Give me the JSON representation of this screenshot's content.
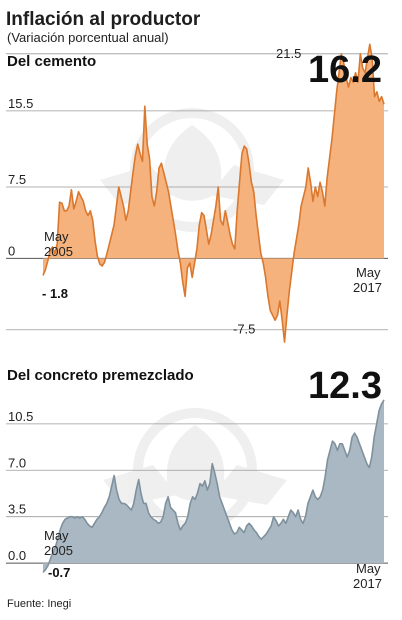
{
  "title": "Inflación al productor",
  "subtitle": "(Variación porcentual anual)",
  "source": "Fuente: Inegi",
  "colors": {
    "cement_fill": "#f5b27c",
    "cement_line": "#d9782e",
    "concrete_fill": "#a9b8c2",
    "concrete_line": "#7f919d"
  },
  "chart_data": [
    {
      "type": "area",
      "title": "Del cemento",
      "start_label": "May 2005",
      "end_label": "May 2017",
      "start_value": "- 1.8",
      "last_value": "16.2",
      "yticks": [
        21.5,
        15.5,
        7.5,
        0,
        -7.5
      ],
      "ylim": [
        -9,
        24
      ],
      "values": [
        -1.8,
        -1.2,
        -0.3,
        0.8,
        1.2,
        0.5,
        1.5,
        5.9,
        5.8,
        5.0,
        5.0,
        5.5,
        7.2,
        5.2,
        6.0,
        7.0,
        6.5,
        6.0,
        5.0,
        4.5,
        5.0,
        4.0,
        1.8,
        0.2,
        -0.6,
        -0.8,
        -0.4,
        0.5,
        1.5,
        2.5,
        3.5,
        5.5,
        7.5,
        6.5,
        5.5,
        4.0,
        5.0,
        7.0,
        9.0,
        10.8,
        12.0,
        11.0,
        10.2,
        16.0,
        12.0,
        10.5,
        6.5,
        5.5,
        7.0,
        9.5,
        10.0,
        9.0,
        8.0,
        7.0,
        5.5,
        4.0,
        2.5,
        0.8,
        -0.5,
        -2.5,
        -4.0,
        -1.0,
        -0.5,
        -2.0,
        -0.5,
        1.0,
        3.5,
        4.8,
        4.5,
        3.0,
        1.5,
        2.5,
        4.0,
        5.5,
        7.5,
        4.0,
        3.5,
        5.0,
        3.8,
        2.5,
        1.5,
        1.0,
        5.0,
        8.0,
        11.0,
        11.8,
        11.5,
        10.0,
        8.0,
        7.0,
        4.5,
        2.5,
        0.5,
        -0.5,
        -2.0,
        -4.0,
        -5.5,
        -6.0,
        -6.5,
        -6.0,
        -4.5,
        -6.5,
        -8.8,
        -6.0,
        -3.5,
        -1.5,
        0.5,
        2.0,
        3.5,
        5.5,
        6.5,
        7.5,
        9.5,
        8.0,
        6.0,
        7.5,
        6.5,
        8.0,
        7.0,
        5.5,
        8.5,
        10.5,
        12.5,
        15.0,
        17.5,
        19.5,
        21.5,
        20.5,
        19.0,
        18.0,
        19.0,
        18.5,
        19.5,
        18.5,
        21.5,
        20.0,
        19.5,
        21.0,
        22.5,
        21.0,
        17.0,
        17.5,
        16.5,
        17.0,
        16.2
      ]
    },
    {
      "type": "area",
      "title": "Del concreto premezclado",
      "start_label": "May 2005",
      "end_label": "May 2017",
      "start_value": "-0.7",
      "last_value": "12.3",
      "yticks": [
        10.5,
        7.0,
        3.5,
        0.0
      ],
      "ylim": [
        -1.5,
        12.6
      ],
      "values": [
        -0.7,
        -0.5,
        -0.2,
        0.3,
        0.8,
        1.2,
        1.8,
        2.5,
        3.0,
        3.3,
        3.4,
        3.5,
        3.5,
        3.4,
        3.5,
        3.4,
        3.5,
        3.3,
        3.0,
        2.8,
        2.7,
        3.0,
        3.3,
        3.5,
        3.8,
        4.2,
        4.5,
        5.0,
        5.8,
        6.6,
        5.5,
        4.8,
        4.5,
        4.5,
        4.4,
        4.2,
        4.0,
        4.5,
        5.5,
        6.3,
        5.2,
        4.5,
        4.5,
        3.8,
        3.5,
        3.3,
        3.2,
        3.0,
        3.1,
        3.5,
        4.5,
        5.0,
        4.2,
        4.0,
        3.8,
        3.0,
        2.5,
        2.8,
        3.0,
        3.5,
        4.5,
        5.0,
        4.8,
        5.3,
        6.0,
        5.8,
        6.2,
        5.5,
        6.0,
        7.5,
        6.8,
        6.0,
        5.0,
        4.5,
        4.0,
        3.5,
        3.0,
        2.5,
        2.2,
        2.3,
        2.7,
        2.5,
        2.3,
        2.8,
        3.0,
        2.8,
        2.5,
        2.3,
        2.0,
        1.8,
        2.0,
        2.2,
        2.5,
        2.8,
        3.5,
        3.2,
        2.8,
        3.0,
        3.3,
        3.0,
        3.5,
        4.0,
        3.8,
        3.5,
        4.0,
        3.3,
        3.0,
        3.5,
        4.5,
        5.0,
        5.5,
        5.0,
        4.8,
        5.0,
        5.5,
        6.5,
        7.8,
        8.5,
        9.2,
        9.0,
        8.5,
        9.0,
        9.0,
        8.5,
        8.0,
        8.5,
        9.5,
        9.8,
        9.5,
        9.0,
        8.5,
        8.0,
        7.5,
        7.2,
        8.0,
        9.5,
        10.5,
        11.5,
        12.0,
        12.3
      ]
    }
  ]
}
